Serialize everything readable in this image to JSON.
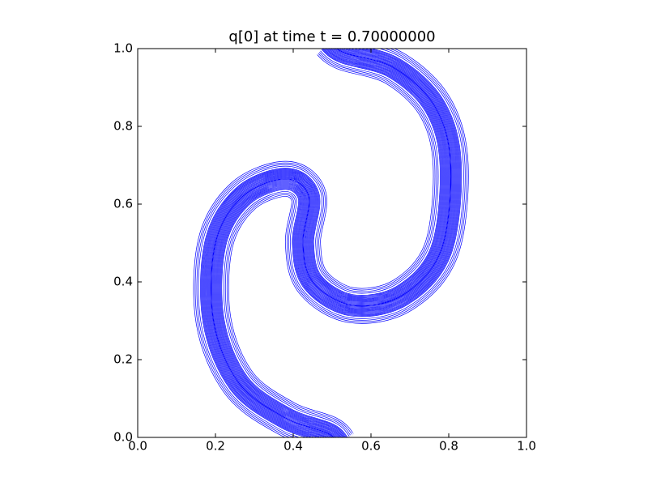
{
  "chart_data": {
    "type": "contour",
    "title": "q[0] at time t =     0.70000000",
    "color": "#0000ff",
    "xlim": [
      0,
      1
    ],
    "ylim": [
      0,
      1
    ],
    "xticks": [
      {
        "value": 0,
        "label": "0.0"
      },
      0.2,
      0.4,
      0.6,
      0.8,
      {
        "value": 1,
        "label": "1.0"
      }
    ],
    "yticks": [
      {
        "value": 0,
        "label": "0.0"
      },
      0.2,
      0.4,
      0.6,
      0.8,
      {
        "value": 1,
        "label": "1.0"
      }
    ]
  }
}
